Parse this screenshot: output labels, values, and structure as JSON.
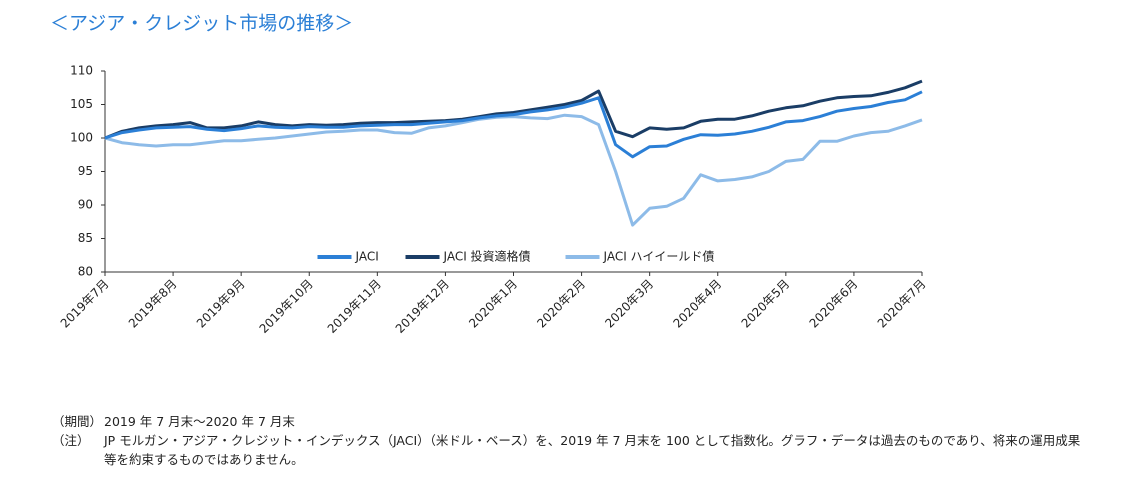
{
  "chart_data": {
    "type": "line",
    "title": "＜アジア・クレジット市場の推移＞",
    "categories": [
      "2019年7月",
      null,
      null,
      null,
      "2019年8月",
      null,
      null,
      null,
      "2019年9月",
      null,
      null,
      null,
      "2019年10月",
      null,
      null,
      null,
      "2019年11月",
      null,
      null,
      null,
      "2019年12月",
      null,
      null,
      null,
      "2020年1月",
      null,
      null,
      null,
      "2020年2月",
      null,
      null,
      null,
      "2020年3月",
      null,
      null,
      null,
      "2020年4月",
      null,
      null,
      null,
      "2020年5月",
      null,
      null,
      null,
      "2020年6月",
      null,
      null,
      null,
      "2020年7月"
    ],
    "series": [
      {
        "name": "JACI",
        "color": "#2b7fd6",
        "values": [
          100,
          100.8,
          101.2,
          101.5,
          101.6,
          101.7,
          101.3,
          101.1,
          101.4,
          101.8,
          101.6,
          101.5,
          101.7,
          101.6,
          101.6,
          101.8,
          101.9,
          102,
          102,
          102.2,
          102.4,
          102.6,
          103,
          103.3,
          103.5,
          103.9,
          104.2,
          104.6,
          105.2,
          106,
          99,
          97.2,
          98.7,
          98.8,
          99.8,
          100.5,
          100.4,
          100.6,
          101,
          101.6,
          102.4,
          102.6,
          103.2,
          104,
          104.4,
          104.7,
          105.3,
          105.7,
          106.9
        ]
      },
      {
        "name": "JACI 投資適格債",
        "color": "#1a3d66",
        "values": [
          100,
          101,
          101.5,
          101.8,
          102,
          102.3,
          101.5,
          101.5,
          101.8,
          102.4,
          102,
          101.8,
          102,
          101.9,
          102,
          102.2,
          102.3,
          102.3,
          102.4,
          102.5,
          102.6,
          102.8,
          103.2,
          103.6,
          103.8,
          104.2,
          104.6,
          105,
          105.6,
          107,
          101,
          100.2,
          101.5,
          101.3,
          101.5,
          102.5,
          102.8,
          102.8,
          103.3,
          104,
          104.5,
          104.8,
          105.5,
          106,
          106.2,
          106.3,
          106.8,
          107.5,
          108.5
        ]
      },
      {
        "name": "JACI ハイイールド債",
        "color": "#8dbbe8",
        "values": [
          100,
          99.3,
          99,
          98.8,
          99,
          99,
          99.3,
          99.6,
          99.6,
          99.8,
          100,
          100.3,
          100.6,
          100.9,
          101,
          101.2,
          101.2,
          100.8,
          100.7,
          101.5,
          101.8,
          102.3,
          102.8,
          103.1,
          103.2,
          103,
          102.9,
          103.4,
          103.2,
          102,
          95,
          87,
          89.5,
          89.8,
          91,
          94.5,
          93.6,
          93.8,
          94.2,
          95,
          96.5,
          96.8,
          99.5,
          99.5,
          100.3,
          100.8,
          101,
          101.8,
          102.7
        ]
      }
    ],
    "ylim": [
      80,
      110
    ],
    "yticks": [
      80,
      85,
      90,
      95,
      100,
      105,
      110
    ],
    "legend": "bottom",
    "notes": [
      [
        "（期間）",
        "2019 年 7 月末～2020 年 7 月末"
      ],
      [
        "（注）",
        "JP モルガン・アジア・クレジット・インデックス（JACI）（米ドル・ベース）を、2019 年 7 月末を 100 として指数化。グラフ・データは過去のものであり、将来の運用成果等を約束するものではありません。"
      ]
    ]
  }
}
